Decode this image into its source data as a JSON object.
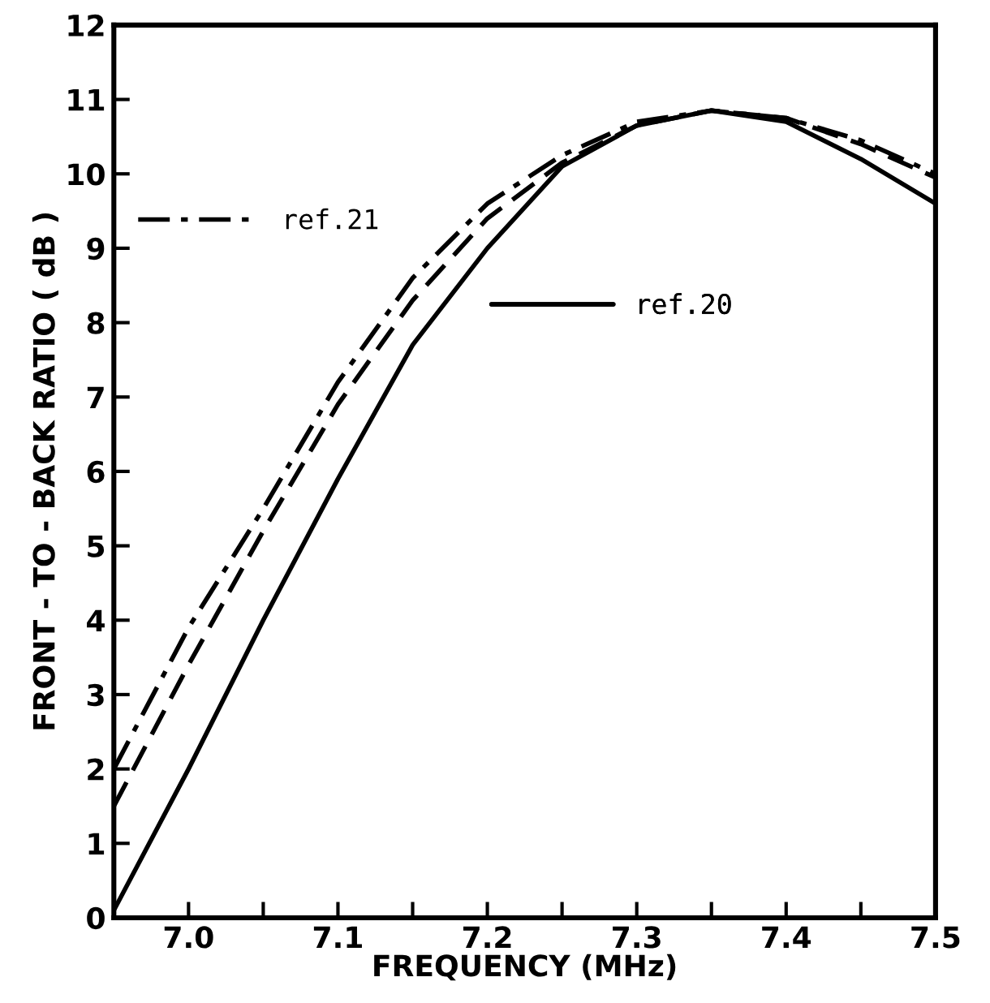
{
  "chart_data": {
    "type": "line",
    "xlabel": "FREQUENCY (MHz)",
    "ylabel": "FRONT - TO - BACK RATIO ( dB )",
    "xlim": [
      6.95,
      7.5
    ],
    "ylim": [
      0,
      12
    ],
    "xticks": [
      {
        "value": 7.0,
        "label": "7.0"
      },
      {
        "value": 7.05,
        "label": null
      },
      7.1,
      {
        "value": 7.15,
        "label": null
      },
      7.2,
      {
        "value": 7.25,
        "label": null
      },
      7.3,
      {
        "value": 7.35,
        "label": null
      },
      7.4,
      {
        "value": 7.45,
        "label": null
      },
      7.5
    ],
    "yticks": [
      0,
      1,
      2,
      3,
      4,
      5,
      6,
      7,
      8,
      9,
      10,
      11,
      12
    ],
    "x": [
      6.95,
      7.0,
      7.05,
      7.1,
      7.15,
      7.2,
      7.25,
      7.3,
      7.35,
      7.4,
      7.45,
      7.5
    ],
    "grid": false,
    "legend": "left",
    "marker": "none",
    "series": [
      {
        "name": "ref.21",
        "color": "#000000",
        "line_style": "dashdot",
        "values": [
          2.0,
          3.9,
          5.5,
          7.2,
          8.6,
          9.6,
          10.25,
          10.7,
          10.85,
          10.75,
          10.45,
          10.0
        ]
      },
      {
        "name": "ref.20",
        "color": "#000000",
        "line_style": "solid",
        "values": [
          0.1,
          2.0,
          4.0,
          5.9,
          7.7,
          9.0,
          10.1,
          10.65,
          10.85,
          10.7,
          10.2,
          9.6
        ]
      },
      {
        "color": "#000000",
        "line_style": "dashed",
        "values": [
          1.5,
          3.4,
          5.2,
          6.9,
          8.3,
          9.4,
          10.15,
          10.65,
          10.85,
          10.75,
          10.4,
          9.95
        ]
      }
    ]
  }
}
